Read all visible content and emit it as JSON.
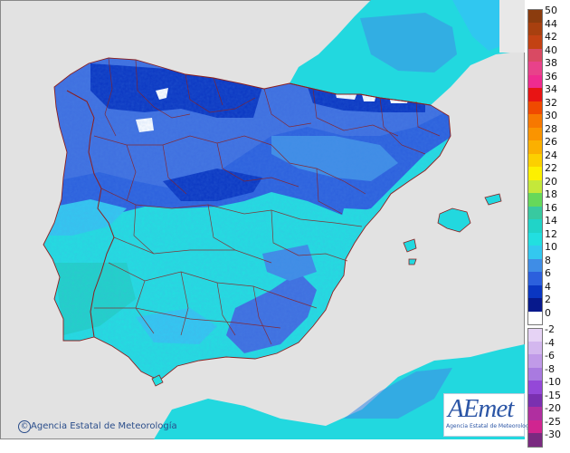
{
  "credit": {
    "text": "Agencia Estatal de Meteorología",
    "icon": "copyright-icon"
  },
  "logo": {
    "mark": "AEmet",
    "subtitle": "Agencia Estatal de Meteorología",
    "color": "#2c56a6"
  },
  "legend": {
    "positive": [
      {
        "label": "50",
        "color": "#8b3c0e"
      },
      {
        "label": "44",
        "color": "#a8400f"
      },
      {
        "label": "42",
        "color": "#c34213"
      },
      {
        "label": "40",
        "color": "#d94a63"
      },
      {
        "label": "38",
        "color": "#e8428a"
      },
      {
        "label": "36",
        "color": "#ef2b8f"
      },
      {
        "label": "34",
        "color": "#e81414"
      },
      {
        "label": "32",
        "color": "#f04a00"
      },
      {
        "label": "30",
        "color": "#f77800"
      },
      {
        "label": "28",
        "color": "#fa9400"
      },
      {
        "label": "26",
        "color": "#fbb000"
      },
      {
        "label": "24",
        "color": "#fcd000"
      },
      {
        "label": "22",
        "color": "#fdf000"
      },
      {
        "label": "20",
        "color": "#c4e83a"
      },
      {
        "label": "18",
        "color": "#66d85a"
      },
      {
        "label": "16",
        "color": "#38c9a0"
      },
      {
        "label": "14",
        "color": "#20d4c8"
      },
      {
        "label": "12",
        "color": "#22dfe0"
      },
      {
        "label": "10",
        "color": "#33c8f0"
      },
      {
        "label": "8",
        "color": "#3f8de6"
      },
      {
        "label": "6",
        "color": "#2c60dd"
      },
      {
        "label": "4",
        "color": "#0a36c2"
      },
      {
        "label": "2",
        "color": "#07198c"
      },
      {
        "label": "0",
        "color": "#ffffff"
      }
    ],
    "negative": [
      {
        "label": "-2",
        "color": "#e6d3f5"
      },
      {
        "label": "-4",
        "color": "#d3b7ee"
      },
      {
        "label": "-6",
        "color": "#c09ae8"
      },
      {
        "label": "-8",
        "color": "#a97ae0"
      },
      {
        "label": "-10",
        "color": "#9448d8"
      },
      {
        "label": "-15",
        "color": "#7a30b0"
      },
      {
        "label": "-20",
        "color": "#b02fa0"
      },
      {
        "label": "-25",
        "color": "#d02590"
      },
      {
        "label": "-30",
        "color": "#7a2a80"
      }
    ]
  },
  "colors": {
    "sea": "#e2e2e2",
    "land_outside": "#e8e8e8",
    "border": "#8b1f1f"
  }
}
